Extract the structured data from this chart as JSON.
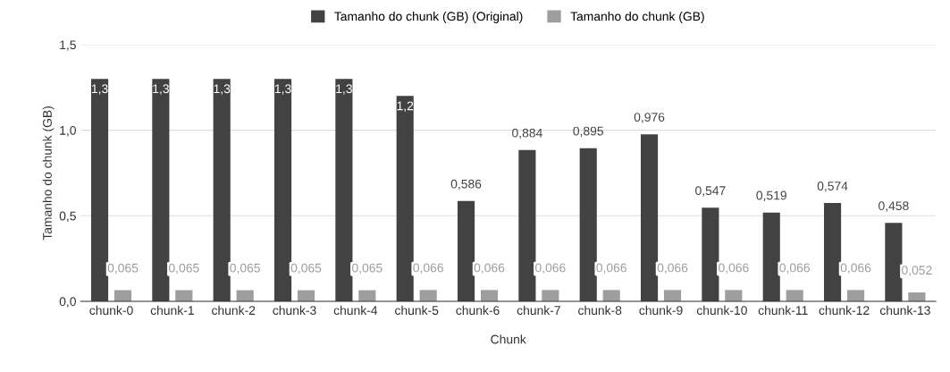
{
  "chart_data": {
    "type": "bar",
    "xlabel": "Chunk",
    "ylabel": "Tamanho do chunk (GB)",
    "categories": [
      "chunk-0",
      "chunk-1",
      "chunk-2",
      "chunk-3",
      "chunk-4",
      "chunk-5",
      "chunk-6",
      "chunk-7",
      "chunk-8",
      "chunk-9",
      "chunk-10",
      "chunk-11",
      "chunk-12",
      "chunk-13"
    ],
    "series": [
      {
        "name": "Tamanho do chunk (GB) (Original)",
        "color": "#424242",
        "values": [
          1.3,
          1.3,
          1.3,
          1.3,
          1.3,
          1.2,
          0.586,
          0.884,
          0.895,
          0.976,
          0.547,
          0.519,
          0.574,
          0.458
        ],
        "value_labels": [
          "1,3",
          "1,3",
          "1,3",
          "1,3",
          "1,3",
          "1,2",
          "0,586",
          "0,884",
          "0,895",
          "0,976",
          "0,547",
          "0,519",
          "0,574",
          "0,458"
        ]
      },
      {
        "name": "Tamanho do chunk (GB)",
        "color": "#9e9e9e",
        "values": [
          0.065,
          0.065,
          0.065,
          0.065,
          0.065,
          0.066,
          0.066,
          0.066,
          0.066,
          0.066,
          0.066,
          0.066,
          0.066,
          0.052
        ],
        "value_labels": [
          "0,065",
          "0,065",
          "0,065",
          "0,065",
          "0,065",
          "0,066",
          "0,066",
          "0,066",
          "0,066",
          "0,066",
          "0,066",
          "0,066",
          "0,066",
          "0,052"
        ]
      }
    ],
    "ylim": [
      0,
      1.5
    ],
    "yticks": [
      {
        "value": 0,
        "label": "0,0"
      },
      {
        "value": 0.5,
        "label": "0,5"
      },
      {
        "value": 1.0,
        "label": "1,0"
      },
      {
        "value": 1.5,
        "label": "1,5"
      }
    ],
    "grid": "y",
    "legend": "top"
  }
}
